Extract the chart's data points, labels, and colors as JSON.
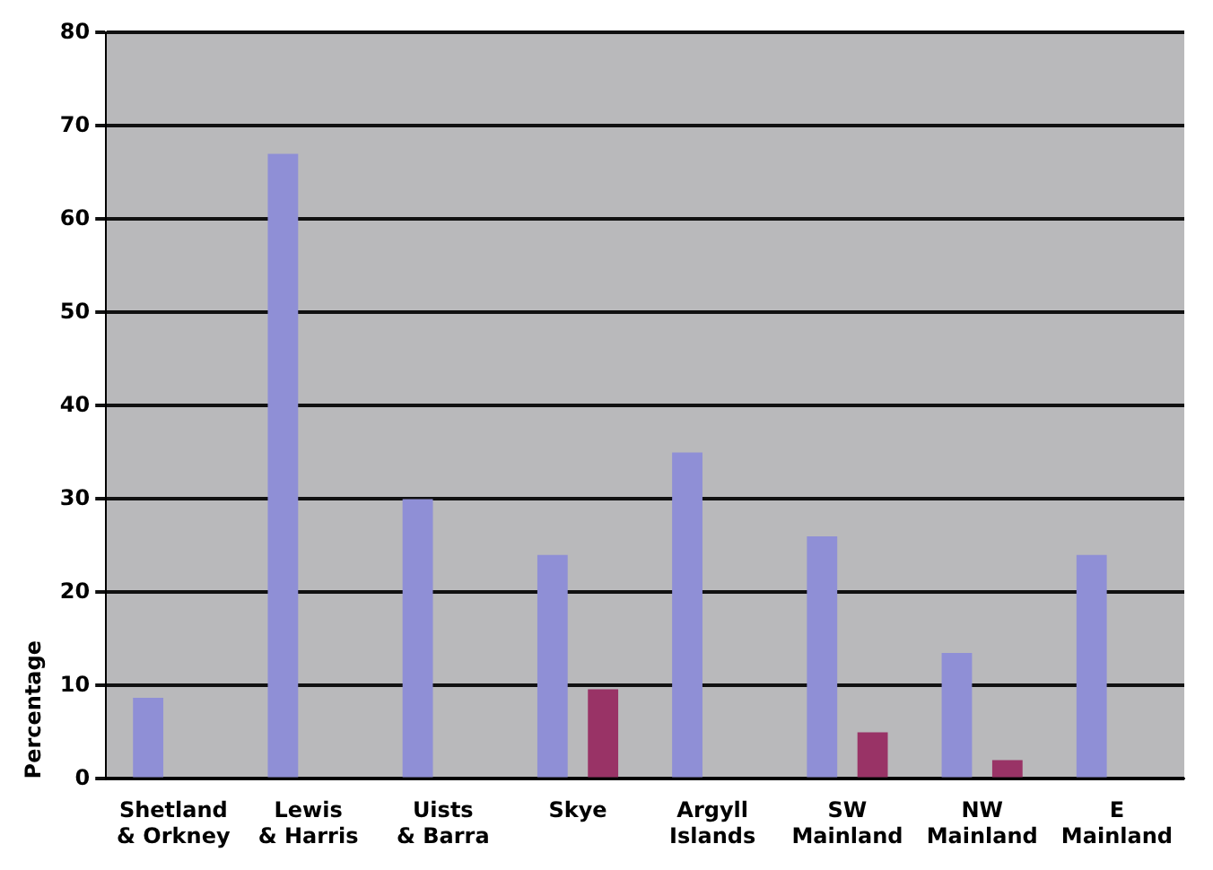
{
  "chart_data": {
    "type": "bar",
    "ylabel": "Percentage",
    "categories": [
      "Shetland\n& Orkney",
      "Lewis\n& Harris",
      "Uists\n& Barra",
      "Skye",
      "Argyll\nIslands",
      "SW\nMainland",
      "NW\nMainland",
      "E\nMainland"
    ],
    "series": [
      {
        "color": "#8f8fd6",
        "values": [
          8.7,
          67,
          30,
          24,
          35,
          26,
          13.5,
          24
        ]
      },
      {
        "color": "#993366",
        "values": [
          0,
          0,
          0,
          9.6,
          0,
          5,
          2,
          0
        ]
      }
    ],
    "ylim": [
      0,
      80
    ],
    "yticks": [
      0,
      10,
      20,
      30,
      40,
      50,
      60,
      70,
      80
    ],
    "grid": "y",
    "legend": false
  }
}
